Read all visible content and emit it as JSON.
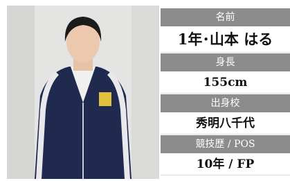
{
  "profile": {
    "rows": [
      {
        "label": "名前",
        "value": "1年･山本 はる"
      },
      {
        "label": "身長",
        "value": "155cm"
      },
      {
        "label": "出身校",
        "value": "秀明八千代"
      },
      {
        "label": "競技歴 / POS",
        "value": "10年 /  FP"
      }
    ]
  }
}
